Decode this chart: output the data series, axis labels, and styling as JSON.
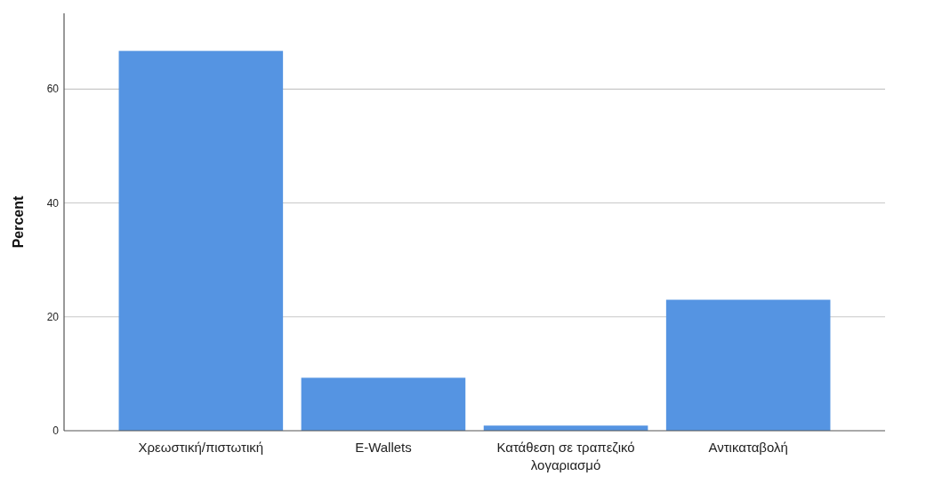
{
  "chart_data": {
    "type": "bar",
    "ylabel": "Percent",
    "categories": [
      "Χρεωστική/πιστωτική",
      "E-Wallets",
      "Κατάθεση σε τραπεζικό λογαριασμό",
      "Αντικαταβολή"
    ],
    "values": [
      66.7,
      9.3,
      0.9,
      23.0
    ],
    "color": "#5594e2",
    "ylim": [
      0,
      73.3
    ],
    "yticks": [
      0,
      20,
      40,
      60
    ],
    "grid": "y"
  }
}
